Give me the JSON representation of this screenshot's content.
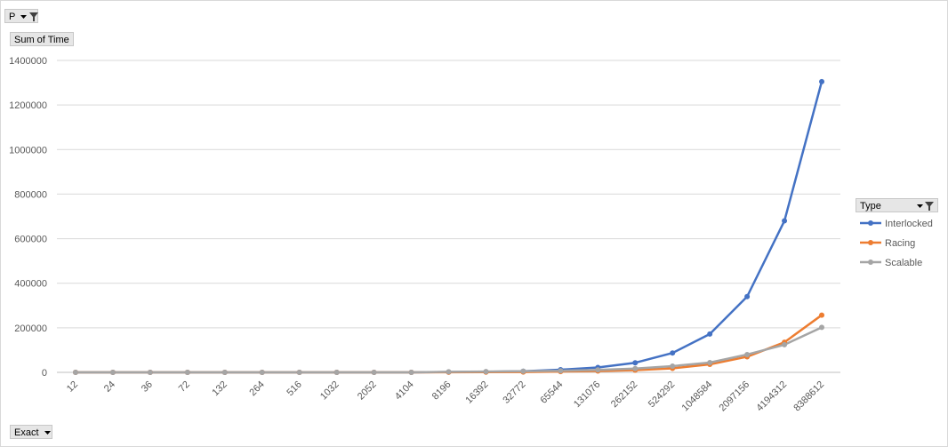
{
  "pivot": {
    "filter_field": "P",
    "values_field": "Sum of Time",
    "axis_field": "Exact",
    "legend_field": "Type"
  },
  "chart_data": {
    "type": "line",
    "title": "",
    "xlabel": "",
    "ylabel": "",
    "ylim": [
      0,
      1400000
    ],
    "yticks": [
      0,
      200000,
      400000,
      600000,
      800000,
      1000000,
      1200000,
      1400000
    ],
    "grid": true,
    "legend_position": "right",
    "categories": [
      "12",
      "24",
      "36",
      "72",
      "132",
      "264",
      "516",
      "1032",
      "2052",
      "4104",
      "8196",
      "16392",
      "32772",
      "65544",
      "131076",
      "262152",
      "524292",
      "1048584",
      "2097156",
      "4194312",
      "8388612"
    ],
    "series": [
      {
        "name": "Interlocked",
        "color": "#4472c4",
        "values": [
          0,
          0,
          0,
          0,
          0,
          0,
          0,
          0,
          0,
          0,
          1500,
          2500,
          5000,
          12000,
          22000,
          43000,
          87000,
          172000,
          340000,
          680000,
          1305000
        ]
      },
      {
        "name": "Racing",
        "color": "#ed7d31",
        "values": [
          0,
          0,
          0,
          0,
          0,
          0,
          0,
          0,
          0,
          0,
          500,
          800,
          1500,
          3500,
          6000,
          10000,
          18000,
          36000,
          70000,
          135000,
          257000
        ]
      },
      {
        "name": "Scalable",
        "color": "#a5a5a5",
        "values": [
          0,
          0,
          0,
          0,
          0,
          0,
          0,
          0,
          0,
          0,
          2500,
          3500,
          5000,
          7000,
          11000,
          17000,
          28000,
          44000,
          80000,
          124000,
          202000
        ]
      }
    ]
  }
}
